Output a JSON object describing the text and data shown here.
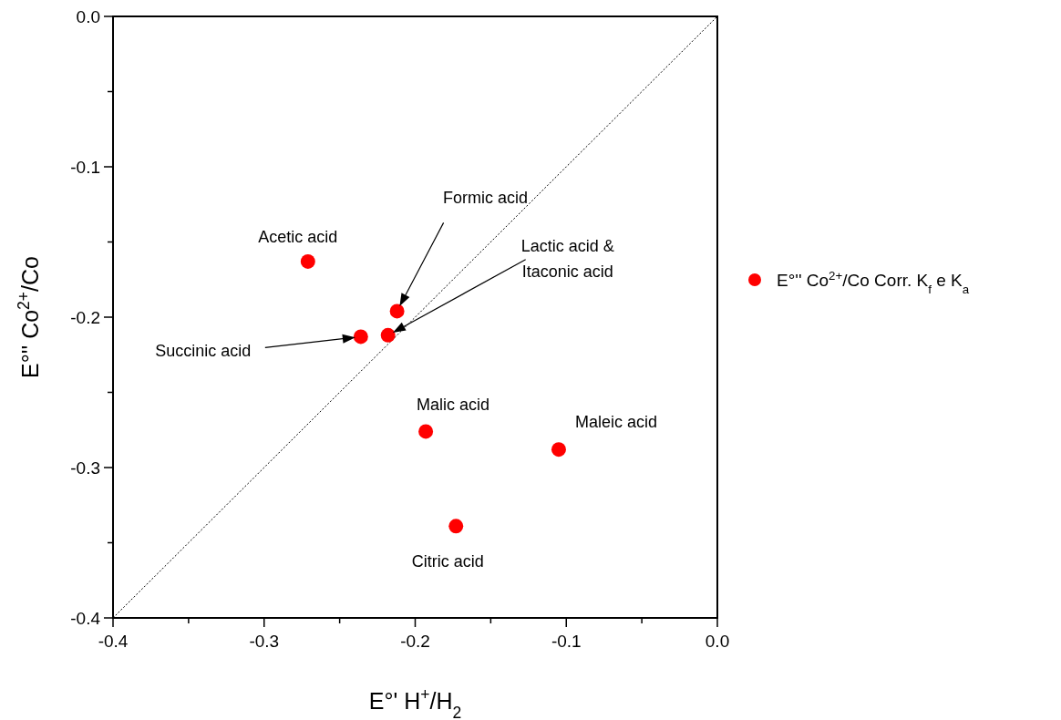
{
  "chart_data": {
    "type": "scatter",
    "xlabel": "E°' H$^{+}$/H$_{2}$",
    "ylabel": "E°'' Co$^{2+}$/Co",
    "xlim": [
      -0.4,
      0.0
    ],
    "ylim": [
      -0.4,
      0.0
    ],
    "xticks": [
      {
        "value": -0.4,
        "label": "-0.4"
      },
      {
        "value": -0.35,
        "label": null
      },
      {
        "value": -0.3,
        "label": "-0.3"
      },
      {
        "value": -0.25,
        "label": null
      },
      {
        "value": -0.2,
        "label": "-0.2"
      },
      {
        "value": -0.15,
        "label": null
      },
      {
        "value": -0.1,
        "label": "-0.1"
      },
      {
        "value": -0.05,
        "label": null
      },
      {
        "value": 0.0,
        "label": "0.0"
      }
    ],
    "yticks": [
      {
        "value": -0.4,
        "label": "-0.4"
      },
      {
        "value": -0.35,
        "label": null
      },
      {
        "value": -0.3,
        "label": "-0.3"
      },
      {
        "value": -0.25,
        "label": null
      },
      {
        "value": -0.2,
        "label": "-0.2"
      },
      {
        "value": -0.15,
        "label": null
      },
      {
        "value": -0.1,
        "label": "-0.1"
      },
      {
        "value": -0.05,
        "label": null
      },
      {
        "value": 0.0,
        "label": "0.0"
      }
    ],
    "grid": false,
    "legend": "right",
    "marker": "circle",
    "series": [
      {
        "name": "E°'' Co$^{2+}$/Co Corr. K$_{f}$ e K$_{a}$",
        "type": "scatter",
        "color": "#ff0000",
        "x": [
          -0.271,
          -0.212,
          -0.218,
          -0.236,
          -0.193,
          -0.105,
          -0.173
        ],
        "values": [
          -0.163,
          -0.196,
          -0.212,
          -0.213,
          -0.276,
          -0.288,
          -0.339
        ]
      },
      {
        "type": "line",
        "color": "#000000",
        "line_style": "dotted",
        "marker": "none",
        "x": [
          -0.4,
          0.0
        ],
        "values": [
          -0.4,
          0.0
        ]
      }
    ],
    "annotations": [
      {
        "text": "Acetic acid",
        "x": -0.271,
        "y": -0.163
      },
      "Formic acid",
      "Lactic acid &\nItaconic acid",
      "Succinic acid",
      {
        "text": "Malic acid",
        "x": -0.193,
        "y": -0.276
      },
      {
        "text": "Maleic acid",
        "x": -0.105,
        "y": -0.288
      },
      {
        "text": "Citric acid",
        "x": -0.173,
        "y": -0.339
      }
    ]
  }
}
